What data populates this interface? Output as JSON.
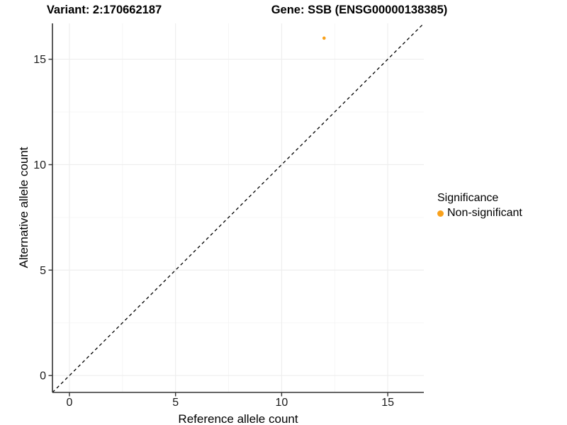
{
  "header": {
    "variant_title": "Variant: 2:170662187",
    "gene_title": "Gene: SSB (ENSG00000138385)"
  },
  "axes": {
    "x_label": "Reference allele count",
    "y_label": "Alternative allele count"
  },
  "legend": {
    "title": "Significance",
    "position": "right",
    "items": [
      {
        "label": "Non-significant",
        "color": "#F9A11B"
      }
    ]
  },
  "colors": {
    "point": "#F9A11B",
    "axis": "#333333",
    "tick_label": "#1a1a1a",
    "grid_major": "#ededed",
    "grid_minor": "#f5f5f5",
    "identity_line": "#000000",
    "background": "#ffffff"
  },
  "chart_data": {
    "type": "scatter",
    "title": "Variant: 2:170662187 | Gene: SSB (ENSG00000138385)",
    "xlabel": "Reference allele count",
    "ylabel": "Alternative allele count",
    "xlim": [
      -0.8,
      16.7
    ],
    "ylim": [
      -0.8,
      16.7
    ],
    "x_ticks": [
      0,
      5,
      10,
      15
    ],
    "y_ticks": [
      0,
      5,
      10,
      15
    ],
    "x_minor_ticks": [
      2.5,
      7.5,
      12.5
    ],
    "y_minor_ticks": [
      2.5,
      7.5,
      12.5
    ],
    "grid": true,
    "legend_position": "right",
    "series": [
      {
        "name": "Non-significant",
        "color": "#F9A11B",
        "points": [
          {
            "x": 12,
            "y": 16
          }
        ]
      }
    ],
    "identity_line": {
      "from": -0.8,
      "to": 16.7,
      "style": "dashed",
      "slope": 1,
      "intercept": 0
    }
  }
}
